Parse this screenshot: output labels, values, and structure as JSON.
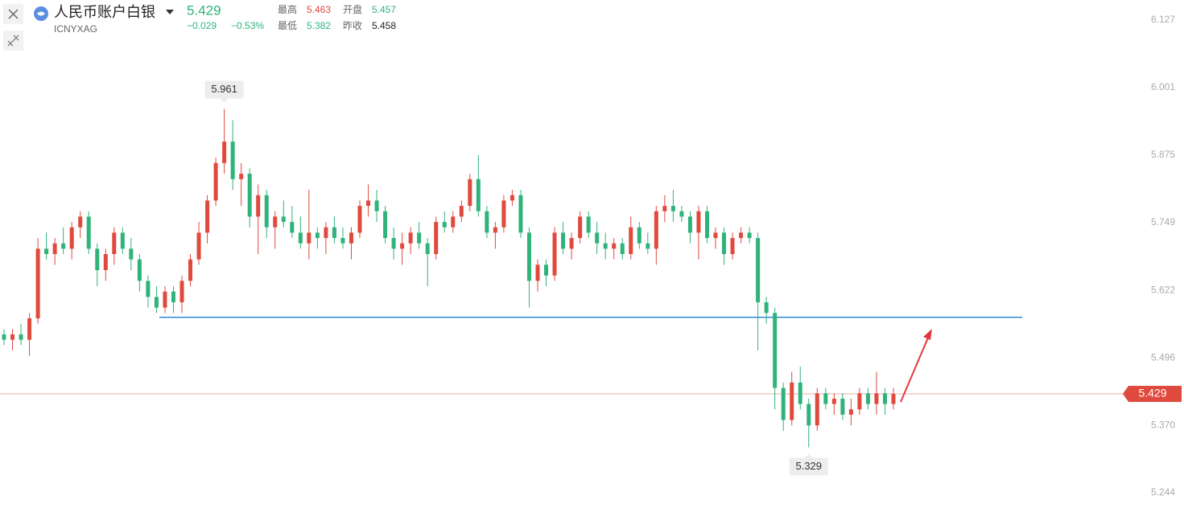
{
  "header": {
    "title": "人民币账户白银",
    "symbol": "ICNYXAG",
    "price": "5.429",
    "change": "−0.029",
    "change_pct": "−0.53%",
    "stats": [
      {
        "label": "最高",
        "value": "5.463"
      },
      {
        "label": "开盘",
        "value": "5.457"
      },
      {
        "label": "最低",
        "value": "5.382"
      },
      {
        "label": "昨收",
        "value": "5.458"
      }
    ]
  },
  "chart_data": {
    "type": "candlestick",
    "up_color": "#e0493d",
    "down_color": "#2fb37b",
    "ylim": [
      5.1915,
      6.1645
    ],
    "yticks": [
      6.127,
      6.001,
      5.875,
      5.749,
      5.622,
      5.496,
      {
        "value": 5.37,
        "label": "5.370"
      },
      5.244
    ],
    "candles": [
      [
        5.54,
        5.55,
        5.52,
        5.53
      ],
      [
        5.53,
        5.55,
        5.51,
        5.54
      ],
      [
        5.54,
        5.56,
        5.52,
        5.53
      ],
      [
        5.53,
        5.58,
        5.5,
        5.57
      ],
      [
        5.57,
        5.72,
        5.56,
        5.7
      ],
      [
        5.7,
        5.73,
        5.68,
        5.69
      ],
      [
        5.69,
        5.72,
        5.67,
        5.71
      ],
      [
        5.71,
        5.74,
        5.69,
        5.7
      ],
      [
        5.7,
        5.75,
        5.68,
        5.74
      ],
      [
        5.74,
        5.77,
        5.72,
        5.76
      ],
      [
        5.76,
        5.77,
        5.69,
        5.7
      ],
      [
        5.7,
        5.71,
        5.63,
        5.66
      ],
      [
        5.66,
        5.7,
        5.64,
        5.69
      ],
      [
        5.69,
        5.74,
        5.67,
        5.73
      ],
      [
        5.73,
        5.74,
        5.69,
        5.7
      ],
      [
        5.7,
        5.72,
        5.66,
        5.68
      ],
      [
        5.68,
        5.69,
        5.62,
        5.64
      ],
      [
        5.64,
        5.65,
        5.59,
        5.61
      ],
      [
        5.61,
        5.63,
        5.58,
        5.59
      ],
      [
        5.59,
        5.63,
        5.58,
        5.62
      ],
      [
        5.62,
        5.63,
        5.58,
        5.6
      ],
      [
        5.6,
        5.65,
        5.58,
        5.64
      ],
      [
        5.64,
        5.69,
        5.63,
        5.68
      ],
      [
        5.68,
        5.75,
        5.67,
        5.73
      ],
      [
        5.73,
        5.8,
        5.71,
        5.79
      ],
      [
        5.79,
        5.87,
        5.78,
        5.86
      ],
      [
        5.86,
        5.961,
        5.84,
        5.9
      ],
      [
        5.9,
        5.94,
        5.81,
        5.83
      ],
      [
        5.83,
        5.86,
        5.78,
        5.84
      ],
      [
        5.84,
        5.85,
        5.74,
        5.76
      ],
      [
        5.76,
        5.82,
        5.69,
        5.8
      ],
      [
        5.8,
        5.81,
        5.72,
        5.74
      ],
      [
        5.74,
        5.77,
        5.7,
        5.76
      ],
      [
        5.76,
        5.79,
        5.74,
        5.75
      ],
      [
        5.75,
        5.78,
        5.72,
        5.73
      ],
      [
        5.73,
        5.76,
        5.7,
        5.71
      ],
      [
        5.71,
        5.81,
        5.68,
        5.73
      ],
      [
        5.73,
        5.74,
        5.7,
        5.72
      ],
      [
        5.72,
        5.75,
        5.69,
        5.74
      ],
      [
        5.74,
        5.76,
        5.71,
        5.72
      ],
      [
        5.72,
        5.74,
        5.7,
        5.71
      ],
      [
        5.71,
        5.74,
        5.68,
        5.73
      ],
      [
        5.73,
        5.79,
        5.72,
        5.78
      ],
      [
        5.78,
        5.82,
        5.76,
        5.79
      ],
      [
        5.79,
        5.81,
        5.75,
        5.77
      ],
      [
        5.77,
        5.78,
        5.71,
        5.72
      ],
      [
        5.72,
        5.74,
        5.68,
        5.7
      ],
      [
        5.7,
        5.73,
        5.67,
        5.71
      ],
      [
        5.71,
        5.74,
        5.69,
        5.73
      ],
      [
        5.73,
        5.75,
        5.7,
        5.71
      ],
      [
        5.71,
        5.72,
        5.63,
        5.69
      ],
      [
        5.69,
        5.76,
        5.68,
        5.75
      ],
      [
        5.75,
        5.77,
        5.73,
        5.74
      ],
      [
        5.74,
        5.77,
        5.73,
        5.76
      ],
      [
        5.76,
        5.79,
        5.75,
        5.78
      ],
      [
        5.78,
        5.84,
        5.77,
        5.83
      ],
      [
        5.83,
        5.875,
        5.76,
        5.77
      ],
      [
        5.77,
        5.78,
        5.72,
        5.73
      ],
      [
        5.73,
        5.75,
        5.7,
        5.74
      ],
      [
        5.74,
        5.8,
        5.73,
        5.79
      ],
      [
        5.79,
        5.81,
        5.78,
        5.8
      ],
      [
        5.8,
        5.81,
        5.72,
        5.73
      ],
      [
        5.73,
        5.74,
        5.59,
        5.64
      ],
      [
        5.64,
        5.68,
        5.62,
        5.67
      ],
      [
        5.67,
        5.68,
        5.63,
        5.65
      ],
      [
        5.65,
        5.74,
        5.64,
        5.73
      ],
      [
        5.73,
        5.75,
        5.69,
        5.7
      ],
      [
        5.7,
        5.73,
        5.68,
        5.72
      ],
      [
        5.72,
        5.77,
        5.71,
        5.76
      ],
      [
        5.76,
        5.77,
        5.72,
        5.73
      ],
      [
        5.73,
        5.75,
        5.69,
        5.71
      ],
      [
        5.71,
        5.73,
        5.68,
        5.7
      ],
      [
        5.7,
        5.72,
        5.68,
        5.71
      ],
      [
        5.71,
        5.72,
        5.68,
        5.69
      ],
      [
        5.69,
        5.76,
        5.68,
        5.74
      ],
      [
        5.74,
        5.75,
        5.7,
        5.71
      ],
      [
        5.71,
        5.73,
        5.69,
        5.7
      ],
      [
        5.7,
        5.78,
        5.67,
        5.77
      ],
      [
        5.77,
        5.8,
        5.75,
        5.78
      ],
      [
        5.78,
        5.81,
        5.75,
        5.77
      ],
      [
        5.77,
        5.78,
        5.75,
        5.76
      ],
      [
        5.76,
        5.77,
        5.71,
        5.73
      ],
      [
        5.73,
        5.78,
        5.68,
        5.77
      ],
      [
        5.77,
        5.78,
        5.71,
        5.72
      ],
      [
        5.72,
        5.74,
        5.7,
        5.73
      ],
      [
        5.73,
        5.74,
        5.67,
        5.69
      ],
      [
        5.69,
        5.73,
        5.68,
        5.72
      ],
      [
        5.72,
        5.74,
        5.71,
        5.73
      ],
      [
        5.73,
        5.74,
        5.71,
        5.72
      ],
      [
        5.72,
        5.73,
        5.51,
        5.6
      ],
      [
        5.6,
        5.61,
        5.56,
        5.58
      ],
      [
        5.58,
        5.59,
        5.4,
        5.44
      ],
      [
        5.44,
        5.45,
        5.36,
        5.38
      ],
      [
        5.38,
        5.47,
        5.37,
        5.45
      ],
      [
        5.45,
        5.48,
        5.4,
        5.41
      ],
      [
        5.41,
        5.42,
        5.329,
        5.37
      ],
      [
        5.37,
        5.44,
        5.36,
        5.43
      ],
      [
        5.43,
        5.44,
        5.4,
        5.41
      ],
      [
        5.41,
        5.43,
        5.39,
        5.42
      ],
      [
        5.42,
        5.43,
        5.38,
        5.39
      ],
      [
        5.39,
        5.42,
        5.37,
        5.4
      ],
      [
        5.4,
        5.44,
        5.39,
        5.43
      ],
      [
        5.43,
        5.44,
        5.4,
        5.41
      ],
      [
        5.41,
        5.47,
        5.39,
        5.43
      ],
      [
        5.43,
        5.44,
        5.39,
        5.41
      ],
      [
        5.41,
        5.44,
        5.4,
        5.429
      ]
    ],
    "annotations": [
      {
        "value": 5.961,
        "position": "above"
      },
      {
        "value": 5.329,
        "position": "below"
      }
    ],
    "hline": {
      "value": 5.572,
      "color": "#2a86d6"
    },
    "price_line": {
      "value": 5.429,
      "color": "#e0493d"
    }
  }
}
